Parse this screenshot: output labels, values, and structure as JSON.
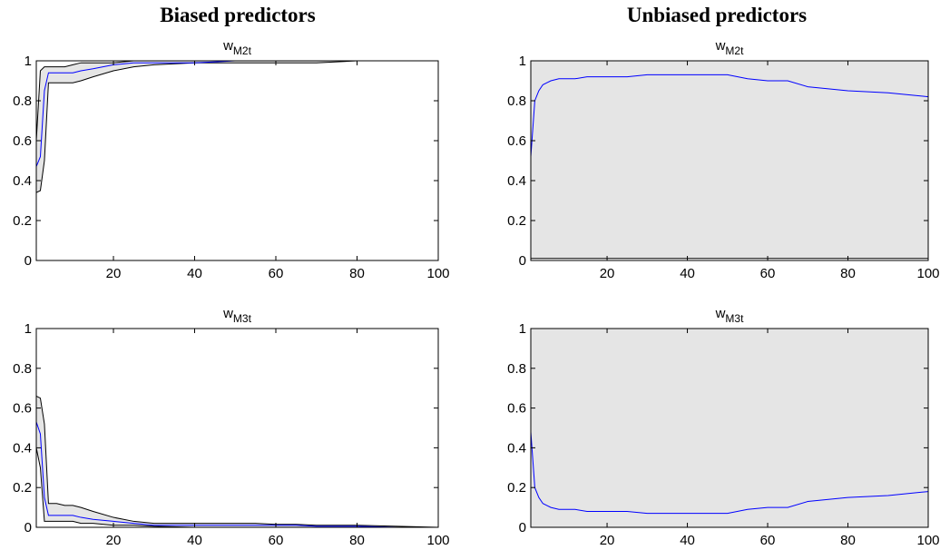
{
  "columns": [
    "Biased predictors",
    "Unbiased predictors"
  ],
  "chart_data": [
    {
      "type": "line",
      "title": "w",
      "subscript": "M2t",
      "x": [
        1,
        2,
        3,
        4,
        5,
        6,
        8,
        10,
        12,
        15,
        20,
        25,
        30,
        40,
        50,
        55,
        60,
        65,
        70,
        80,
        90,
        100
      ],
      "series": [
        {
          "color": "#0000ff",
          "values": [
            0.47,
            0.52,
            0.85,
            0.94,
            0.94,
            0.94,
            0.94,
            0.94,
            0.95,
            0.96,
            0.98,
            0.99,
            0.99,
            0.99,
            1,
            1,
            1,
            1,
            1,
            1,
            1,
            1
          ]
        }
      ],
      "band": {
        "fill": "#e5e5e5",
        "edge_color": "#000000",
        "lower": [
          0.34,
          0.35,
          0.5,
          0.89,
          0.89,
          0.89,
          0.89,
          0.89,
          0.9,
          0.92,
          0.95,
          0.97,
          0.98,
          0.99,
          0.99,
          0.99,
          0.99,
          0.99,
          0.99,
          1,
          1,
          1
        ],
        "upper": [
          0.6,
          0.95,
          0.97,
          0.97,
          0.97,
          0.97,
          0.97,
          0.98,
          0.99,
          0.99,
          0.99,
          1,
          1,
          1,
          1,
          1,
          1,
          1,
          1,
          1,
          1,
          1
        ]
      },
      "xlim": [
        1,
        100
      ],
      "xticks": [
        20,
        40,
        60,
        80,
        100
      ],
      "ylim": [
        0,
        1
      ],
      "yticks": [
        0,
        0.2,
        0.4,
        0.6,
        0.8,
        1
      ],
      "grid": false
    },
    {
      "type": "line",
      "title": "w",
      "subscript": "M2t",
      "x": [
        1,
        2,
        3,
        4,
        5,
        6,
        8,
        10,
        12,
        15,
        20,
        25,
        30,
        40,
        50,
        55,
        60,
        65,
        70,
        80,
        90,
        100
      ],
      "series": [
        {
          "color": "#0000ff",
          "values": [
            0.52,
            0.8,
            0.85,
            0.88,
            0.89,
            0.9,
            0.91,
            0.91,
            0.91,
            0.92,
            0.92,
            0.92,
            0.93,
            0.93,
            0.93,
            0.91,
            0.9,
            0.9,
            0.87,
            0.85,
            0.84,
            0.82
          ]
        }
      ],
      "band": {
        "fill": "#e5e5e5",
        "edge_color": "#000000",
        "lower": [
          0.01,
          0.01,
          0.01,
          0.01,
          0.01,
          0.01,
          0.01,
          0.01,
          0.01,
          0.01,
          0.01,
          0.01,
          0.01,
          0.01,
          0.01,
          0.01,
          0.01,
          0.01,
          0.01,
          0.01,
          0.01,
          0.01
        ],
        "upper": [
          1,
          1,
          1,
          1,
          1,
          1,
          1,
          1,
          1,
          1,
          1,
          1,
          1,
          1,
          1,
          1,
          1,
          1,
          1,
          1,
          1,
          1
        ]
      },
      "xlim": [
        1,
        100
      ],
      "xticks": [
        20,
        40,
        60,
        80,
        100
      ],
      "ylim": [
        0,
        1
      ],
      "yticks": [
        0,
        0.2,
        0.4,
        0.6,
        0.8,
        1
      ],
      "grid": false
    },
    {
      "type": "line",
      "title": "w",
      "subscript": "M3t",
      "x": [
        1,
        2,
        3,
        4,
        5,
        6,
        8,
        10,
        12,
        15,
        20,
        25,
        30,
        40,
        50,
        55,
        60,
        65,
        70,
        80,
        90,
        100
      ],
      "series": [
        {
          "color": "#0000ff",
          "values": [
            0.53,
            0.47,
            0.15,
            0.06,
            0.06,
            0.06,
            0.06,
            0.06,
            0.05,
            0.04,
            0.03,
            0.02,
            0.01,
            0.01,
            0.01,
            0.01,
            0.01,
            0.01,
            0.005,
            0.005,
            0,
            0
          ]
        }
      ],
      "band": {
        "fill": "#e5e5e5",
        "edge_color": "#000000",
        "lower": [
          0.4,
          0.3,
          0.03,
          0.03,
          0.03,
          0.03,
          0.03,
          0.03,
          0.02,
          0.02,
          0.01,
          0.01,
          0.005,
          0,
          0,
          0,
          0,
          0,
          0,
          0,
          0,
          0
        ],
        "upper": [
          0.66,
          0.65,
          0.52,
          0.12,
          0.12,
          0.12,
          0.11,
          0.11,
          0.1,
          0.08,
          0.05,
          0.03,
          0.02,
          0.02,
          0.02,
          0.02,
          0.015,
          0.015,
          0.01,
          0.01,
          0.005,
          0
        ]
      },
      "xlim": [
        1,
        100
      ],
      "xticks": [
        20,
        40,
        60,
        80,
        100
      ],
      "ylim": [
        0,
        1
      ],
      "yticks": [
        0,
        0.2,
        0.4,
        0.6,
        0.8,
        1
      ],
      "grid": false
    },
    {
      "type": "line",
      "title": "w",
      "subscript": "M3t",
      "x": [
        1,
        2,
        3,
        4,
        5,
        6,
        8,
        10,
        12,
        15,
        20,
        25,
        30,
        40,
        50,
        55,
        60,
        65,
        70,
        80,
        90,
        100
      ],
      "series": [
        {
          "color": "#0000ff",
          "values": [
            0.48,
            0.2,
            0.15,
            0.12,
            0.11,
            0.1,
            0.09,
            0.09,
            0.09,
            0.08,
            0.08,
            0.08,
            0.07,
            0.07,
            0.07,
            0.09,
            0.1,
            0.1,
            0.13,
            0.15,
            0.16,
            0.18
          ]
        }
      ],
      "band": {
        "fill": "#e5e5e5",
        "edge_color": "#000000",
        "lower": [
          0,
          0,
          0,
          0,
          0,
          0,
          0,
          0,
          0,
          0,
          0,
          0,
          0,
          0,
          0,
          0,
          0,
          0,
          0,
          0,
          0,
          0
        ],
        "upper": [
          1,
          1,
          1,
          1,
          1,
          1,
          1,
          1,
          1,
          1,
          1,
          1,
          1,
          1,
          1,
          1,
          1,
          1,
          1,
          1,
          1,
          1
        ]
      },
      "xlim": [
        1,
        100
      ],
      "xticks": [
        20,
        40,
        60,
        80,
        100
      ],
      "ylim": [
        0,
        1
      ],
      "yticks": [
        0,
        0.2,
        0.4,
        0.6,
        0.8,
        1
      ],
      "grid": false
    }
  ]
}
